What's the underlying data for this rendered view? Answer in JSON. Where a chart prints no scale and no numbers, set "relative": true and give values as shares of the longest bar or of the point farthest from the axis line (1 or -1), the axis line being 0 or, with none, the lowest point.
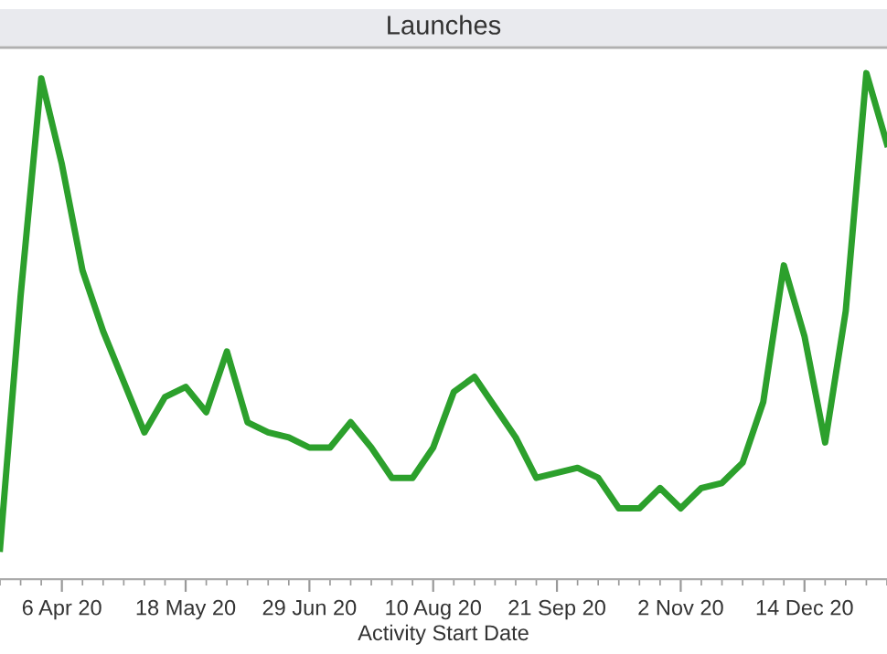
{
  "chart_data": {
    "type": "line",
    "title": "Launches",
    "xlabel": "Activity Start Date",
    "relative": true,
    "x": [
      "2020-03-16",
      "2020-03-23",
      "2020-03-30",
      "2020-04-06",
      "2020-04-13",
      "2020-04-20",
      "2020-04-27",
      "2020-05-04",
      "2020-05-11",
      "2020-05-18",
      "2020-05-25",
      "2020-06-01",
      "2020-06-08",
      "2020-06-15",
      "2020-06-22",
      "2020-06-29",
      "2020-07-06",
      "2020-07-13",
      "2020-07-20",
      "2020-07-27",
      "2020-08-03",
      "2020-08-10",
      "2020-08-17",
      "2020-08-24",
      "2020-08-31",
      "2020-09-07",
      "2020-09-14",
      "2020-09-21",
      "2020-09-28",
      "2020-10-05",
      "2020-10-12",
      "2020-10-19",
      "2020-10-26",
      "2020-11-02",
      "2020-11-09",
      "2020-11-16",
      "2020-11-23",
      "2020-11-30",
      "2020-12-07",
      "2020-12-14",
      "2020-12-21",
      "2020-12-28",
      "2021-01-04",
      "2021-01-11"
    ],
    "series": [
      {
        "color": "#2ca02c",
        "values": [
          0.06,
          0.56,
          0.99,
          0.82,
          0.61,
          0.49,
          0.39,
          0.29,
          0.36,
          0.38,
          0.33,
          0.45,
          0.31,
          0.29,
          0.28,
          0.26,
          0.26,
          0.31,
          0.26,
          0.2,
          0.2,
          0.26,
          0.37,
          0.4,
          0.34,
          0.28,
          0.2,
          0.21,
          0.22,
          0.2,
          0.14,
          0.14,
          0.18,
          0.14,
          0.18,
          0.19,
          0.23,
          0.35,
          0.62,
          0.48,
          0.27,
          0.53,
          1,
          0.86
        ]
      }
    ],
    "xlim": [
      "2020-03-16",
      "2021-01-11"
    ],
    "xticks": [
      {
        "value": "2020-04-06",
        "label": "6 Apr 20"
      },
      {
        "value": "2020-05-18",
        "label": "18 May 20"
      },
      {
        "value": "2020-06-29",
        "label": "29 Jun 20"
      },
      {
        "value": "2020-08-10",
        "label": "10 Aug 20"
      },
      {
        "value": "2020-09-21",
        "label": "21 Sep 20"
      },
      {
        "value": "2020-11-02",
        "label": "2 Nov 20"
      },
      {
        "value": "2020-12-14",
        "label": "14 Dec 20"
      }
    ],
    "grid": false,
    "marker": "none",
    "line_style": "solid"
  }
}
